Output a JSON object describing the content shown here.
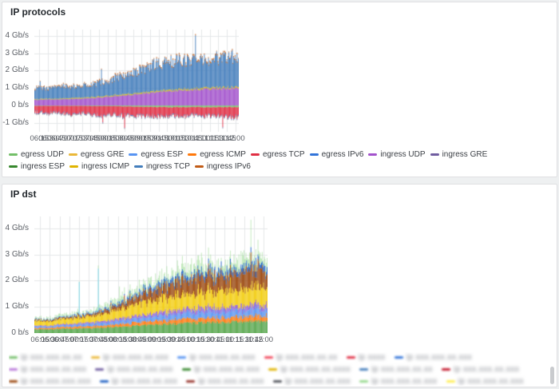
{
  "panel1": {
    "title": "IP protocols",
    "legend": [
      {
        "label": "egress UDP",
        "color": "#73BF69"
      },
      {
        "label": "egress GRE",
        "color": "#EAB839"
      },
      {
        "label": "egress ESP",
        "color": "#5794F2"
      },
      {
        "label": "egress ICMP",
        "color": "#FF780A"
      },
      {
        "label": "egress TCP",
        "color": "#E02F44"
      },
      {
        "label": "egress IPv6",
        "color": "#3274D9"
      },
      {
        "label": "ingress UDP",
        "color": "#A352CC"
      },
      {
        "label": "ingress GRE",
        "color": "#705DA0"
      },
      {
        "label": "ingress ESP",
        "color": "#37872D"
      },
      {
        "label": "ingress ICMP",
        "color": "#E0B400"
      },
      {
        "label": "ingress TCP",
        "color": "#447EBC"
      },
      {
        "label": "ingress IPv6",
        "color": "#C15C17"
      }
    ]
  },
  "panel2": {
    "title": "IP dst",
    "legend": [
      {
        "label": "ip xxx.xxx.xx.xx",
        "color": "#73BF69",
        "redacted": true
      },
      {
        "label": "ip xxx.xxx.xx.xxx",
        "color": "#EAB839",
        "redacted": true
      },
      {
        "label": "ip xxx.xxx.xx.xxx",
        "color": "#5794F2",
        "redacted": true
      },
      {
        "label": "ip xxx.xxx.xx.xx",
        "color": "#F2495C",
        "redacted": true
      },
      {
        "label": "ip xxxx",
        "color": "#E02F44",
        "redacted": true
      },
      {
        "label": "ip xxx.xxx.xx.xxx",
        "color": "#3274D9",
        "redacted": true
      },
      {
        "label": "ip xxx.xxx.xx.xxx",
        "color": "#B877D9",
        "redacted": true
      },
      {
        "label": "ip xxx.xxx.xx.xxx",
        "color": "#705DA0",
        "redacted": true
      },
      {
        "label": "ip xxx.xxx.xx.xxx",
        "color": "#37872D",
        "redacted": true
      },
      {
        "label": "ip xxx.xxx.xx.xxxx",
        "color": "#E0B400",
        "redacted": true
      },
      {
        "label": "ip xxx.xxx.xx.xx",
        "color": "#447EBC",
        "redacted": true
      },
      {
        "label": "ip xxx.xxx.xx.xxx",
        "color": "#C4162A",
        "redacted": true
      },
      {
        "label": "ip xxx.xxx.xxx.xxx",
        "color": "#99440A",
        "redacted": true
      },
      {
        "label": "ip xxx.xxx.xx.xxx",
        "color": "#1F60C4",
        "redacted": true
      },
      {
        "label": "ip xxx.xxx.xx.xxx",
        "color": "#96332B",
        "redacted": true
      },
      {
        "label": "ip xxx.xxx.xx.xxx",
        "color": "#52545C",
        "redacted": true
      },
      {
        "label": "ip xxx.xxx.xx.xxx",
        "color": "#96D98D",
        "redacted": true
      },
      {
        "label": "ip xxx.xxx.xx.xxx",
        "color": "#FFEE52",
        "redacted": true
      },
      {
        "label": "ip xxx.xxx.xx.xxxx",
        "color": "#6ED0E0",
        "redacted": true
      },
      {
        "label": "ip xxx.xxx.xx.xxx",
        "color": "#FFB357",
        "redacted": true
      }
    ]
  },
  "chart_data": [
    {
      "id": "c1",
      "type": "bar",
      "stacked": true,
      "title": "IP protocols",
      "unit": "Gb/s",
      "legend_position": "bottom",
      "grid": true,
      "bars": 300,
      "seed": 11,
      "ylim": [
        -1.5,
        4.35
      ],
      "y_tick_values": [
        4,
        3,
        2,
        1,
        0,
        -1
      ],
      "y_ticks": [
        "4 Gb/s",
        "3 Gb/s",
        "2 Gb/s",
        "1 Gb/s",
        "0 b/s",
        "-1 Gb/s"
      ],
      "x_labels": [
        "06:15",
        "06:30",
        "06:45",
        "07:00",
        "07:15",
        "07:30",
        "07:45",
        "08:00",
        "08:15",
        "08:30",
        "08:45",
        "09:00",
        "09:15",
        "09:30",
        "09:45",
        "10:00",
        "10:15",
        "10:30",
        "10:45",
        "11:00",
        "11:15",
        "11:30",
        "11:45",
        "12:00"
      ],
      "series": [
        {
          "name": "ingress UDP",
          "color": "#A352CC",
          "jitter": 0.08,
          "values": [
            0.32,
            0.33,
            0.35,
            0.36,
            0.38,
            0.4,
            0.42,
            0.45,
            0.5,
            0.55,
            0.58,
            0.62,
            0.68,
            0.72,
            0.78,
            0.82,
            0.85,
            0.88,
            0.9,
            0.92,
            0.93,
            0.95,
            0.97,
            1.0
          ]
        },
        {
          "name": "ingress GRE",
          "color": "#705DA0",
          "jitter": 0.3,
          "values": [
            0.01,
            0.01,
            0.01,
            0.01,
            0.01,
            0.01,
            0.01,
            0.01,
            0.01,
            0.01,
            0.01,
            0.01,
            0.01,
            0.01,
            0.01,
            0.01,
            0.01,
            0.01,
            0.01,
            0.01,
            0.01,
            0.01,
            0.01,
            0.01
          ]
        },
        {
          "name": "ingress ESP",
          "color": "#37872D",
          "jitter": 0.3,
          "values": [
            0.01,
            0.01,
            0.01,
            0.01,
            0.01,
            0.01,
            0.01,
            0.01,
            0.01,
            0.01,
            0.01,
            0.01,
            0.01,
            0.01,
            0.01,
            0.01,
            0.01,
            0.01,
            0.01,
            0.01,
            0.01,
            0.01,
            0.01,
            0.01
          ]
        },
        {
          "name": "ingress ICMP",
          "color": "#E0B400",
          "jitter": 0.4,
          "values": [
            0.03,
            0.03,
            0.03,
            0.03,
            0.04,
            0.04,
            0.04,
            0.04,
            0.04,
            0.05,
            0.05,
            0.05,
            0.05,
            0.05,
            0.05,
            0.06,
            0.06,
            0.06,
            0.06,
            0.06,
            0.06,
            0.06,
            0.06,
            0.06
          ]
        },
        {
          "name": "ingress TCP",
          "color": "#447EBC",
          "jitter": 0.22,
          "spike": 1.7,
          "values": [
            0.62,
            0.6,
            0.65,
            0.68,
            0.62,
            0.7,
            0.72,
            0.78,
            0.85,
            0.95,
            1.05,
            1.15,
            1.3,
            1.45,
            1.55,
            1.6,
            1.65,
            1.58,
            1.62,
            1.68,
            1.6,
            1.65,
            1.7,
            1.72
          ]
        },
        {
          "name": "ingress IPv6",
          "color": "#C15C17",
          "jitter": 0.4,
          "values": [
            0.04,
            0.04,
            0.04,
            0.05,
            0.05,
            0.05,
            0.05,
            0.05,
            0.05,
            0.06,
            0.06,
            0.06,
            0.06,
            0.06,
            0.07,
            0.07,
            0.07,
            0.07,
            0.07,
            0.07,
            0.07,
            0.07,
            0.07,
            0.07
          ]
        },
        {
          "name": "egress UDP",
          "color": "#73BF69",
          "jitter": 0.3,
          "values": [
            -0.02,
            -0.02,
            -0.02,
            -0.02,
            -0.02,
            -0.02,
            -0.03,
            -0.03,
            -0.03,
            -0.04,
            -0.05,
            -0.06,
            -0.07,
            -0.08,
            -0.08,
            -0.09,
            -0.09,
            -0.09,
            -0.09,
            -0.09,
            -0.09,
            -0.09,
            -0.09,
            -0.09
          ]
        },
        {
          "name": "egress TCP",
          "color": "#E02F44",
          "jitter": 0.28,
          "spike": 1.9,
          "values": [
            -0.35,
            -0.4,
            -0.38,
            -0.42,
            -0.45,
            -0.4,
            -0.45,
            -0.52,
            -0.45,
            -0.5,
            -0.52,
            -0.5,
            -0.55,
            -0.5,
            -0.52,
            -0.48,
            -0.45,
            -0.5,
            -0.45,
            -0.48,
            -0.45,
            -0.5,
            -0.52,
            -0.55
          ]
        },
        {
          "name": "egress IPv6",
          "color": "#3274D9",
          "jitter": 0.3,
          "values": [
            -0.04,
            -0.04,
            -0.04,
            -0.04,
            -0.04,
            -0.04,
            -0.04,
            -0.04,
            -0.04,
            -0.04,
            -0.04,
            -0.04,
            -0.04,
            -0.04,
            -0.04,
            -0.04,
            -0.04,
            -0.04,
            -0.04,
            -0.04,
            -0.04,
            -0.04,
            -0.04,
            -0.04
          ]
        },
        {
          "name": "egress ICMP",
          "color": "#FF780A",
          "jitter": 0.4,
          "values": [
            -0.01,
            -0.01,
            -0.01,
            -0.01,
            -0.01,
            -0.01,
            -0.01,
            -0.01,
            -0.01,
            -0.01,
            -0.01,
            -0.01,
            -0.01,
            -0.01,
            -0.01,
            -0.01,
            -0.01,
            -0.01,
            -0.01,
            -0.01,
            -0.01,
            -0.01,
            -0.01,
            -0.01
          ]
        },
        {
          "name": "egress GRE",
          "color": "#EAB839",
          "jitter": 0.4,
          "values": [
            -0.01,
            -0.01,
            -0.01,
            -0.01,
            -0.01,
            -0.01,
            -0.01,
            -0.01,
            -0.01,
            -0.01,
            -0.01,
            -0.01,
            -0.01,
            -0.01,
            -0.01,
            -0.01,
            -0.01,
            -0.01,
            -0.01,
            -0.01,
            -0.01,
            -0.01,
            -0.01,
            -0.01
          ]
        },
        {
          "name": "egress ESP",
          "color": "#5794F2",
          "jitter": 0.4,
          "values": [
            -0.01,
            -0.01,
            -0.01,
            -0.01,
            -0.01,
            -0.01,
            -0.01,
            -0.01,
            -0.01,
            -0.01,
            -0.01,
            -0.01,
            -0.01,
            -0.01,
            -0.01,
            -0.01,
            -0.01,
            -0.01,
            -0.01,
            -0.01,
            -0.01,
            -0.01,
            -0.01,
            -0.01
          ]
        }
      ]
    },
    {
      "id": "c2",
      "type": "bar",
      "stacked": true,
      "title": "IP dst",
      "unit": "Gb/s",
      "legend_position": "bottom",
      "grid": true,
      "bars": 330,
      "seed": 23,
      "ylim": [
        0,
        4.45
      ],
      "y_tick_values": [
        4,
        3,
        2,
        1,
        0
      ],
      "y_ticks": [
        "4 Gb/s",
        "3 Gb/s",
        "2 Gb/s",
        "1 Gb/s",
        "0 b/s"
      ],
      "x_labels": [
        "06:15",
        "06:30",
        "06:45",
        "07:00",
        "07:15",
        "07:30",
        "07:45",
        "08:00",
        "08:15",
        "08:30",
        "08:45",
        "09:00",
        "09:15",
        "09:30",
        "09:45",
        "10:00",
        "10:15",
        "10:30",
        "10:45",
        "11:00",
        "11:15",
        "11:30",
        "11:45",
        "12:00"
      ],
      "series": [
        {
          "name": "redacted-ip-1",
          "color": "#56A64B",
          "jitter": 0.15,
          "values": [
            0.15,
            0.15,
            0.16,
            0.17,
            0.18,
            0.19,
            0.2,
            0.22,
            0.24,
            0.26,
            0.28,
            0.3,
            0.32,
            0.34,
            0.35,
            0.37,
            0.38,
            0.4,
            0.41,
            0.42,
            0.43,
            0.44,
            0.44,
            0.45
          ]
        },
        {
          "name": "redacted-ip-2",
          "color": "#FF780A",
          "jitter": 0.35,
          "values": [
            0.05,
            0.05,
            0.06,
            0.06,
            0.07,
            0.07,
            0.08,
            0.09,
            0.1,
            0.11,
            0.12,
            0.13,
            0.14,
            0.15,
            0.15,
            0.16,
            0.16,
            0.17,
            0.17,
            0.18,
            0.18,
            0.18,
            0.19,
            0.2
          ]
        },
        {
          "name": "redacted-ip-3",
          "color": "#5794F2",
          "jitter": 0.35,
          "values": [
            0.06,
            0.06,
            0.07,
            0.07,
            0.08,
            0.09,
            0.1,
            0.11,
            0.12,
            0.14,
            0.15,
            0.17,
            0.18,
            0.2,
            0.21,
            0.22,
            0.23,
            0.24,
            0.24,
            0.25,
            0.25,
            0.26,
            0.26,
            0.27
          ]
        },
        {
          "name": "redacted-ip-4",
          "color": "#8F5FD5",
          "jitter": 0.35,
          "values": [
            0.03,
            0.03,
            0.04,
            0.04,
            0.05,
            0.05,
            0.06,
            0.07,
            0.08,
            0.09,
            0.1,
            0.11,
            0.12,
            0.13,
            0.14,
            0.15,
            0.15,
            0.16,
            0.16,
            0.17,
            0.17,
            0.17,
            0.18,
            0.18
          ]
        },
        {
          "name": "redacted-ip-5",
          "color": "#F2CC0C",
          "jitter": 0.3,
          "spike": 1.5,
          "values": [
            0.18,
            0.17,
            0.19,
            0.2,
            0.22,
            0.24,
            0.26,
            0.3,
            0.34,
            0.38,
            0.42,
            0.46,
            0.5,
            0.54,
            0.56,
            0.58,
            0.6,
            0.6,
            0.62,
            0.62,
            0.63,
            0.64,
            0.64,
            0.65
          ]
        },
        {
          "name": "redacted-ip-6",
          "color": "#99440A",
          "jitter": 0.35,
          "spike": 1.8,
          "values": [
            0.04,
            0.04,
            0.05,
            0.06,
            0.07,
            0.08,
            0.1,
            0.13,
            0.17,
            0.22,
            0.28,
            0.35,
            0.42,
            0.5,
            0.55,
            0.58,
            0.6,
            0.62,
            0.63,
            0.64,
            0.65,
            0.65,
            0.66,
            0.66
          ]
        },
        {
          "name": "redacted-ip-7",
          "color": "#1F60C4",
          "jitter": 0.45,
          "spike": 2.0,
          "values": [
            0.02,
            0.02,
            0.03,
            0.03,
            0.04,
            0.04,
            0.05,
            0.06,
            0.07,
            0.08,
            0.1,
            0.11,
            0.12,
            0.14,
            0.15,
            0.16,
            0.16,
            0.17,
            0.17,
            0.18,
            0.18,
            0.18,
            0.19,
            0.19
          ]
        },
        {
          "name": "redacted-ip-8",
          "color": "#6ED0E0",
          "jitter": 0.5,
          "impulses": [
            {
              "i": 4,
              "v": 2.05
            },
            {
              "i": 6,
              "v": 1.7
            }
          ],
          "values": [
            0.01,
            0.01,
            0.01,
            0.01,
            0.01,
            0.01,
            0.01,
            0.01,
            0.01,
            0.01,
            0.01,
            0.01,
            0.01,
            0.01,
            0.01,
            0.01,
            0.01,
            0.01,
            0.01,
            0.01,
            0.01,
            0.01,
            0.01,
            0.01
          ]
        },
        {
          "name": "redacted-ip-9",
          "color": "#96D98D",
          "alpha": 0.55,
          "jitter": 0.9,
          "spike": 2.5,
          "values": [
            0.05,
            0.05,
            0.06,
            0.07,
            0.08,
            0.09,
            0.1,
            0.12,
            0.15,
            0.18,
            0.2,
            0.22,
            0.24,
            0.26,
            0.27,
            0.28,
            0.28,
            0.29,
            0.29,
            0.3,
            0.3,
            0.3,
            0.3,
            0.3
          ]
        }
      ]
    }
  ]
}
